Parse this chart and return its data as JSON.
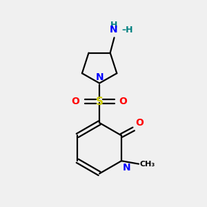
{
  "background_color": "#f0f0f0",
  "bond_color": "#000000",
  "nitrogen_color": "#0000ff",
  "oxygen_color": "#ff0000",
  "sulfur_color": "#cccc00",
  "nh2_h_color": "#008080",
  "fig_width": 3.0,
  "fig_height": 3.0,
  "dpi": 100,
  "xlim": [
    0,
    10
  ],
  "ylim": [
    0,
    10
  ]
}
